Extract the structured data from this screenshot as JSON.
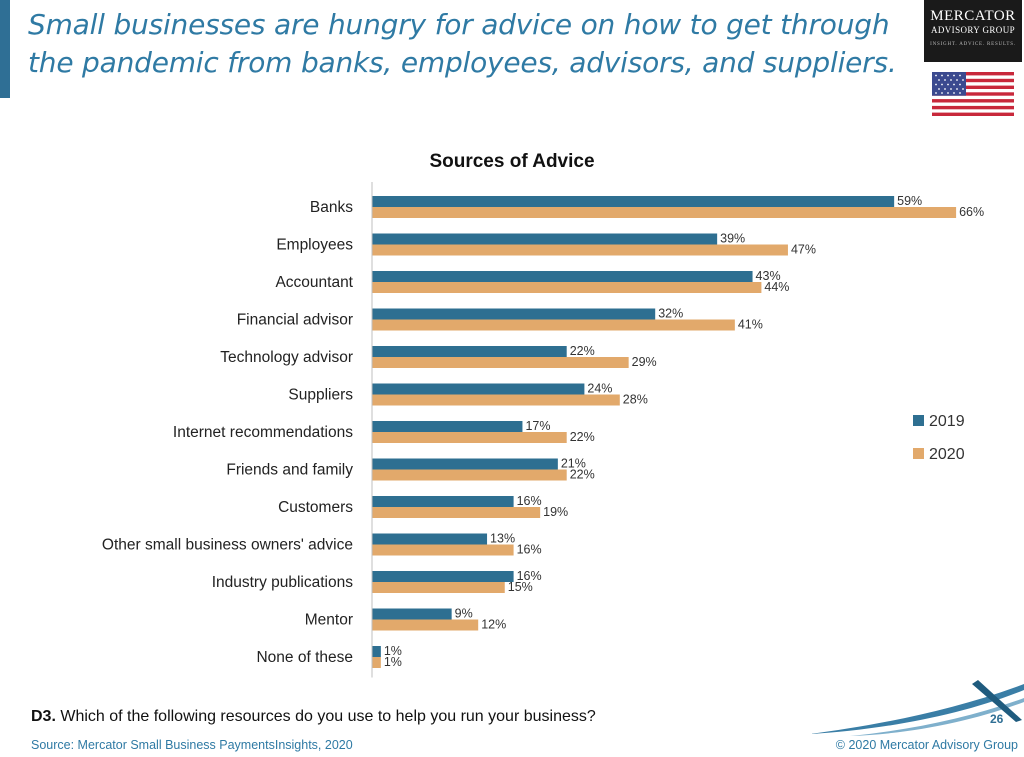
{
  "headline": "Small businesses are hungry for advice on how to get through the pandemic from banks, employees, advisors, and suppliers.",
  "logo": {
    "line1": "MERCATOR",
    "line2": "ADVISORY GROUP",
    "tagline": "INSIGHT. ADVICE. RESULTS."
  },
  "question": {
    "prefix": "D3.",
    "text": " Which of the following resources do you use to help you run your business?"
  },
  "source": "Source: Mercator Small Business PaymentsInsights, 2020",
  "copyright": "© 2020 Mercator Advisory Group",
  "page_number": "26",
  "colors": {
    "accent": "#2f7aa4",
    "series_2019": "#2e6f91",
    "series_2020": "#e2a96b"
  },
  "chart_data": {
    "type": "bar",
    "orientation": "horizontal",
    "title": "Sources of Advice",
    "categories": [
      "Banks",
      "Employees",
      "Accountant",
      "Financial advisor",
      "Technology advisor",
      "Suppliers",
      "Internet recommendations",
      "Friends and family",
      "Customers",
      "Other small business owners' advice",
      "Industry publications",
      "Mentor",
      "None of these"
    ],
    "series": [
      {
        "name": "2019",
        "values": [
          59,
          39,
          43,
          32,
          22,
          24,
          17,
          21,
          16,
          13,
          16,
          9,
          1
        ]
      },
      {
        "name": "2020",
        "values": [
          66,
          47,
          44,
          41,
          29,
          28,
          22,
          22,
          19,
          16,
          15,
          12,
          1
        ]
      }
    ],
    "value_suffix": "%",
    "xlim": [
      0,
      70
    ],
    "legend": "right",
    "grid": false
  }
}
